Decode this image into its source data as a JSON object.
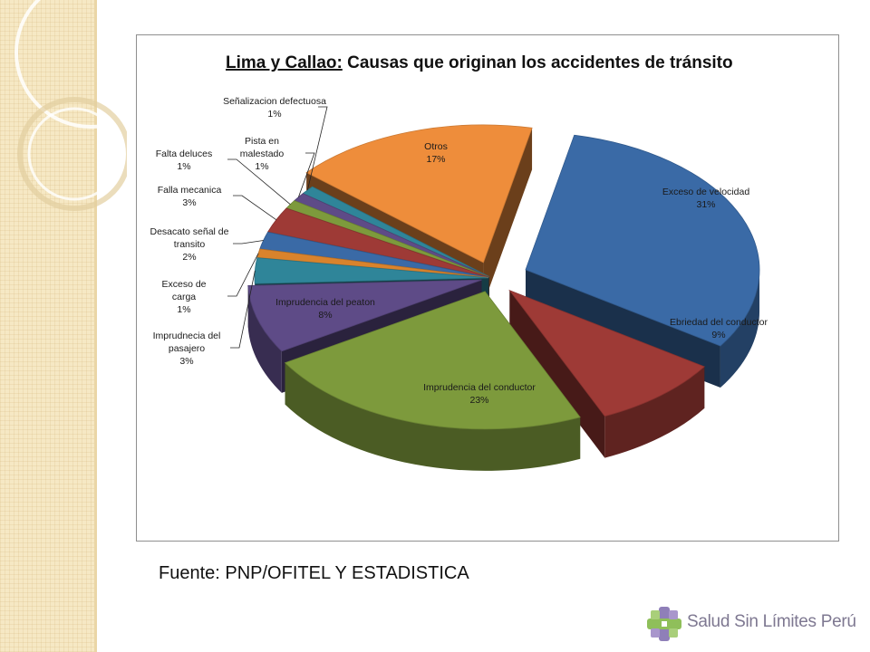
{
  "chart_data": {
    "type": "pie",
    "title_prefix": "Lima y Callao:",
    "title_rest": " Causas que originan los accidentes de tránsito",
    "unit": "%",
    "slices": [
      {
        "name": "Exceso de velocidad",
        "value": 31,
        "label": "31%",
        "color": "#3a6aa6"
      },
      {
        "name": "Ebriedad del conductor",
        "value": 9,
        "label": "9%",
        "color": "#9e3a36"
      },
      {
        "name": "Imprudencia del conductor",
        "value": 23,
        "label": "23%",
        "color": "#7d9a3c"
      },
      {
        "name": "Imprudencia del peaton",
        "value": 8,
        "label": "8%",
        "color": "#5e4b87"
      },
      {
        "name": "Imprudnecia del pasajero",
        "value": 3,
        "label": "3%",
        "color": "#2f8599"
      },
      {
        "name": "Exceso de carga",
        "value": 1,
        "label": "1%",
        "color": "#d9832c"
      },
      {
        "name": "Desacato señal de transito",
        "value": 2,
        "label": "2%",
        "color": "#3a6aa6"
      },
      {
        "name": "Falla mecanica",
        "value": 3,
        "label": "3%",
        "color": "#9e3a36"
      },
      {
        "name": "Falta deluces",
        "value": 1,
        "label": "1%",
        "color": "#7d9a3c"
      },
      {
        "name": "Pista en malestado",
        "value": 1,
        "label": "1%",
        "color": "#5e4b87"
      },
      {
        "name": "Señalizacion defectuosa",
        "value": 1,
        "label": "1%",
        "color": "#2f8599"
      },
      {
        "name": "Otros",
        "value": 17,
        "label": "17%",
        "color": "#ee8d3b"
      }
    ]
  },
  "source_note": "Fuente: PNP/OFITEL Y ESTADISTICA",
  "logo": {
    "text": "Salud Sin Límites Perú",
    "icon": "cross-knot-logo-icon"
  }
}
